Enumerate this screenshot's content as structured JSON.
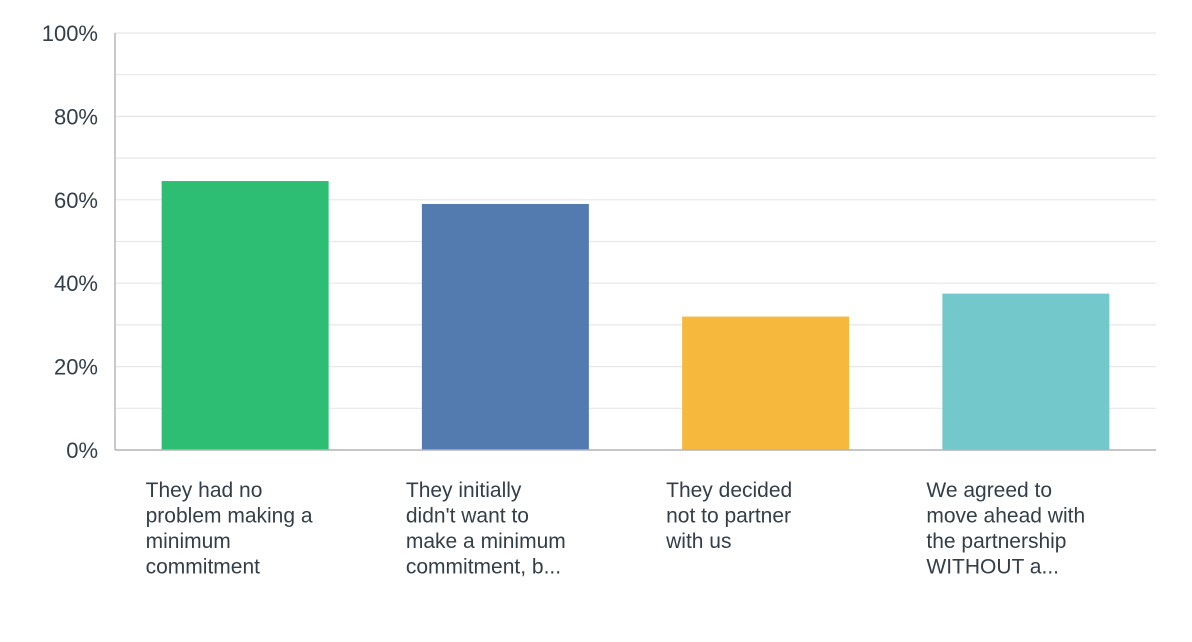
{
  "chart_data": {
    "type": "bar",
    "title": "",
    "xlabel": "",
    "ylabel": "",
    "ylim": [
      0,
      100
    ],
    "yticks": [
      0,
      20,
      40,
      60,
      80,
      100
    ],
    "yticks_labels": [
      "0%",
      "20%",
      "40%",
      "60%",
      "80%",
      "100%"
    ],
    "minor_grid_step": 10,
    "grid": true,
    "categories": [
      "They had no problem making a minimum commitment",
      "They initially didn't want to make a minimum commitment, b...",
      "They decided not to partner with us",
      "We agreed to move ahead with the partnership WITHOUT a..."
    ],
    "category_label_lines": [
      [
        "They had no",
        "problem making a",
        "minimum",
        "commitment"
      ],
      [
        "They initially",
        "didn't want to",
        "make a minimum",
        "commitment, b..."
      ],
      [
        "They decided",
        "not to partner",
        "with us"
      ],
      [
        "We agreed to",
        "move ahead with",
        "the partnership",
        "WITHOUT a..."
      ]
    ],
    "values": [
      64.5,
      59,
      32,
      37.5
    ],
    "colors": [
      "#2dbe73",
      "#537bb0",
      "#f7b93d",
      "#73c8cb"
    ]
  }
}
